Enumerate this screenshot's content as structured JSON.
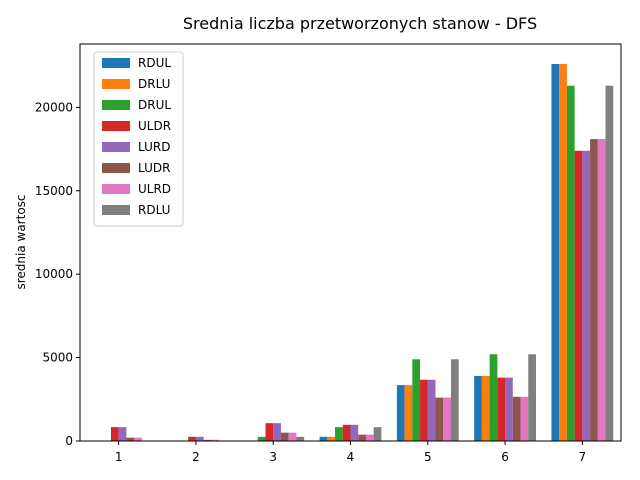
{
  "chart_data": {
    "type": "bar",
    "title": "Srednia liczba przetworzonych stanow - DFS",
    "xlabel": "",
    "ylabel": "srednia wartosc",
    "categories": [
      "1",
      "2",
      "3",
      "4",
      "5",
      "6",
      "7"
    ],
    "ylim": [
      0,
      23800
    ],
    "yticks": [
      0,
      5000,
      10000,
      15000,
      20000
    ],
    "ytick_labels": [
      "0",
      "5000",
      "10000",
      "15000",
      "20000"
    ],
    "grid": false,
    "legend_position": "top-left",
    "series": [
      {
        "name": "RDUL",
        "color": "#1f77b4",
        "values": [
          0,
          0,
          10,
          250,
          3350,
          3900,
          22600
        ]
      },
      {
        "name": "DRLU",
        "color": "#ff7f0e",
        "values": [
          0,
          0,
          10,
          250,
          3350,
          3900,
          22600
        ]
      },
      {
        "name": "DRUL",
        "color": "#2ca02c",
        "values": [
          0,
          0,
          250,
          830,
          4900,
          5200,
          21300
        ]
      },
      {
        "name": "ULDR",
        "color": "#d62728",
        "values": [
          830,
          250,
          1070,
          970,
          3670,
          3800,
          17400
        ]
      },
      {
        "name": "LURD",
        "color": "#9467bd",
        "values": [
          830,
          250,
          1070,
          970,
          3670,
          3800,
          17400
        ]
      },
      {
        "name": "LUDR",
        "color": "#8c564b",
        "values": [
          200,
          70,
          500,
          380,
          2600,
          2650,
          18100
        ]
      },
      {
        "name": "ULRD",
        "color": "#e377c2",
        "values": [
          200,
          70,
          500,
          380,
          2600,
          2650,
          18100
        ]
      },
      {
        "name": "RDLU",
        "color": "#7f7f7f",
        "values": [
          0,
          0,
          250,
          830,
          4900,
          5200,
          21300
        ]
      }
    ]
  }
}
